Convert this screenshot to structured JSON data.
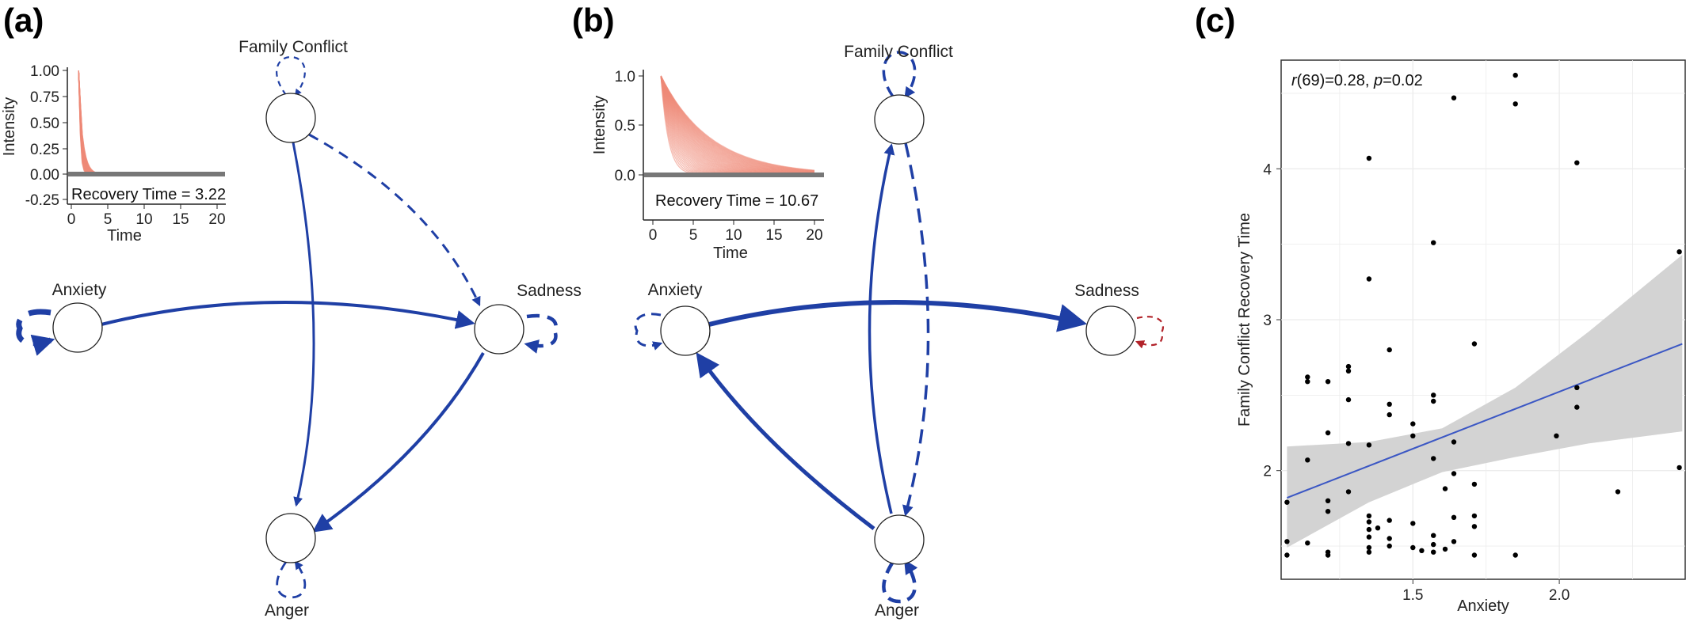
{
  "panels": {
    "a": {
      "label": "(a)",
      "nodes": {
        "family_conflict": "Family Conflict",
        "anxiety": "Anxiety",
        "sadness": "Sadness",
        "anger": "Anger"
      },
      "inset": {
        "ylabel": "Intensity",
        "xlabel": "Time",
        "yticks": [
          "1.00",
          "0.75",
          "0.50",
          "0.25",
          "0.00",
          "-0.25"
        ],
        "xticks": [
          "0",
          "5",
          "10",
          "15",
          "20"
        ],
        "recovery_text": "Recovery Time = 3.22"
      }
    },
    "b": {
      "label": "(b)",
      "nodes": {
        "family_conflict": "Family Conflict",
        "anxiety": "Anxiety",
        "sadness": "Sadness",
        "anger": "Anger"
      },
      "inset": {
        "ylabel": "Intensity",
        "xlabel": "Time",
        "yticks": [
          "1.0",
          "0.5",
          "0.0"
        ],
        "xticks": [
          "0",
          "5",
          "10",
          "15",
          "20"
        ],
        "recovery_text": "Recovery Time = 10.67"
      }
    },
    "c": {
      "label": "(c)",
      "stat_r": "r",
      "stat_rest1": "(69)=0.28, ",
      "stat_p": "p",
      "stat_rest2": "=0.02"
    }
  },
  "colors": {
    "edge_blue": "#1f3fa5",
    "self_red": "#b2232a",
    "impulse": "#ef8a78",
    "fit_line": "#3b57c4",
    "ci_band": "#d3d3d3"
  },
  "chart_data": {
    "type": "scatter",
    "title": "",
    "xlabel": "Anxiety",
    "ylabel": "Family Conflict Recovery Time",
    "xlim": [
      1.05,
      2.43
    ],
    "ylim": [
      1.28,
      4.72
    ],
    "xticks": [
      1.5,
      2.0
    ],
    "yticks": [
      2,
      3,
      4
    ],
    "grid": true,
    "regression": {
      "x": [
        1.07,
        2.42
      ],
      "y": [
        1.82,
        2.84
      ]
    },
    "ci_upper": [
      [
        1.07,
        2.16
      ],
      [
        1.35,
        2.19
      ],
      [
        1.6,
        2.28
      ],
      [
        1.85,
        2.55
      ],
      [
        2.1,
        2.92
      ],
      [
        2.42,
        3.43
      ]
    ],
    "ci_lower": [
      [
        2.42,
        2.26
      ],
      [
        2.1,
        2.18
      ],
      [
        1.85,
        2.09
      ],
      [
        1.6,
        1.99
      ],
      [
        1.35,
        1.79
      ],
      [
        1.07,
        1.49
      ]
    ],
    "points": [
      [
        1.07,
        1.79
      ],
      [
        1.07,
        1.53
      ],
      [
        1.07,
        1.44
      ],
      [
        1.14,
        2.62
      ],
      [
        1.14,
        2.59
      ],
      [
        1.14,
        2.07
      ],
      [
        1.14,
        1.52
      ],
      [
        1.21,
        2.59
      ],
      [
        1.21,
        2.25
      ],
      [
        1.21,
        1.8
      ],
      [
        1.21,
        1.73
      ],
      [
        1.21,
        1.46
      ],
      [
        1.21,
        1.44
      ],
      [
        1.28,
        2.69
      ],
      [
        1.28,
        2.66
      ],
      [
        1.28,
        2.47
      ],
      [
        1.28,
        2.18
      ],
      [
        1.28,
        1.86
      ],
      [
        1.35,
        4.07
      ],
      [
        1.35,
        3.27
      ],
      [
        1.35,
        2.17
      ],
      [
        1.35,
        1.7
      ],
      [
        1.35,
        1.66
      ],
      [
        1.35,
        1.61
      ],
      [
        1.35,
        1.56
      ],
      [
        1.35,
        1.49
      ],
      [
        1.35,
        1.46
      ],
      [
        1.38,
        1.62
      ],
      [
        1.42,
        2.8
      ],
      [
        1.42,
        2.44
      ],
      [
        1.42,
        2.37
      ],
      [
        1.42,
        1.67
      ],
      [
        1.42,
        1.55
      ],
      [
        1.42,
        1.5
      ],
      [
        1.5,
        2.31
      ],
      [
        1.5,
        2.23
      ],
      [
        1.5,
        1.65
      ],
      [
        1.5,
        1.49
      ],
      [
        1.53,
        1.47
      ],
      [
        1.57,
        3.51
      ],
      [
        1.57,
        2.5
      ],
      [
        1.57,
        2.46
      ],
      [
        1.57,
        2.08
      ],
      [
        1.57,
        1.57
      ],
      [
        1.57,
        1.51
      ],
      [
        1.57,
        1.46
      ],
      [
        1.61,
        1.88
      ],
      [
        1.61,
        1.48
      ],
      [
        1.64,
        4.47
      ],
      [
        1.64,
        2.19
      ],
      [
        1.64,
        1.98
      ],
      [
        1.64,
        1.69
      ],
      [
        1.64,
        1.53
      ],
      [
        1.71,
        2.84
      ],
      [
        1.71,
        1.91
      ],
      [
        1.71,
        1.7
      ],
      [
        1.71,
        1.63
      ],
      [
        1.71,
        1.44
      ],
      [
        1.85,
        4.62
      ],
      [
        1.85,
        4.43
      ],
      [
        1.85,
        1.44
      ],
      [
        1.99,
        2.23
      ],
      [
        2.06,
        4.04
      ],
      [
        2.06,
        2.55
      ],
      [
        2.06,
        2.42
      ],
      [
        2.2,
        1.86
      ],
      [
        2.41,
        3.45
      ],
      [
        2.41,
        2.02
      ]
    ]
  }
}
